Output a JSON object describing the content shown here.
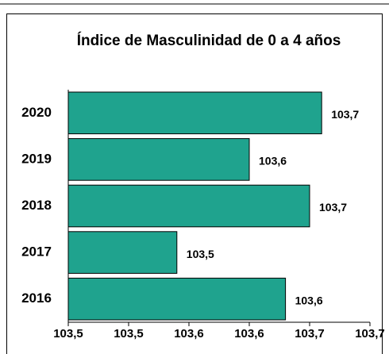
{
  "chart_data": {
    "type": "bar",
    "orientation": "horizontal",
    "title": "Índice de Masculinidad de 0 a 4 años",
    "categories": [
      "2020",
      "2019",
      "2018",
      "2017",
      "2016"
    ],
    "values": [
      103.66,
      103.6,
      103.65,
      103.54,
      103.63
    ],
    "value_labels": [
      "103,7",
      "103,6",
      "103,7",
      "103,5",
      "103,6"
    ],
    "color": "#1fa38e",
    "xlim": [
      103.45,
      103.7
    ],
    "xticks": [
      {
        "value": 103.45,
        "label": "103,5"
      },
      {
        "value": 103.5,
        "label": "103,5"
      },
      {
        "value": 103.55,
        "label": "103,6"
      },
      {
        "value": 103.6,
        "label": "103,6"
      },
      {
        "value": 103.65,
        "label": "103,7"
      },
      {
        "value": 103.7,
        "label": "103,7"
      }
    ],
    "grid": false
  }
}
